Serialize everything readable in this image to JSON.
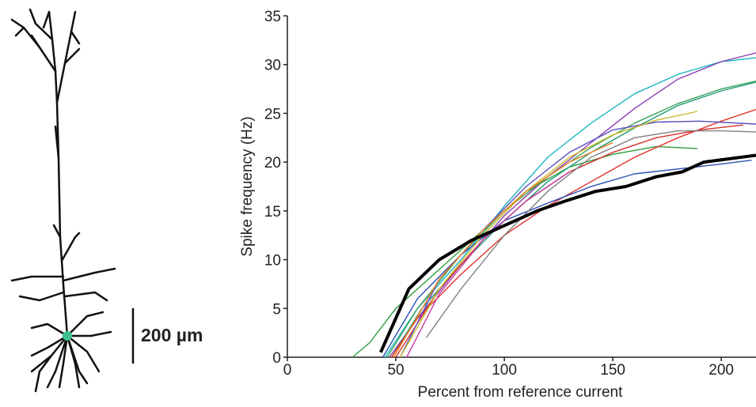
{
  "morphology": {
    "scale_bar_label": "200 µm"
  },
  "chart_data": {
    "type": "line",
    "x_label": "Percent from reference current",
    "y_label": "Spike frequency (Hz)",
    "xlim": [
      0,
      216
    ],
    "ylim": [
      0,
      35
    ],
    "xticks": [
      0,
      50,
      100,
      150,
      200
    ],
    "yticks": [
      0,
      5,
      10,
      15,
      20,
      25,
      30,
      35
    ],
    "series": [
      {
        "color": "#1fb5c0",
        "x": [
          45,
          60,
          80,
          100,
          120,
          140,
          160,
          180,
          200,
          216
        ],
        "values": [
          0,
          5,
          10,
          15.5,
          20.5,
          24,
          27,
          29,
          30.3,
          30.7
        ]
      },
      {
        "color": "#8e3fb5",
        "x": [
          47,
          60,
          80,
          100,
          120,
          140,
          160,
          180,
          200,
          216
        ],
        "values": [
          0,
          4,
          9.5,
          14.5,
          18.5,
          22,
          25.5,
          28.5,
          30.3,
          31.2
        ]
      },
      {
        "color": "#2e9b3e",
        "x": [
          30,
          38,
          50,
          70,
          90,
          110,
          130,
          150,
          170,
          189
        ],
        "values": [
          0,
          1.5,
          5,
          9,
          13,
          17,
          19.5,
          20.8,
          21.6,
          21.4
        ]
      },
      {
        "color": "#3aa55c",
        "x": [
          46,
          60,
          80,
          100,
          120,
          140,
          160,
          180,
          200,
          216
        ],
        "values": [
          0,
          5,
          10.5,
          15,
          18.5,
          21.5,
          24,
          26,
          27.5,
          28.3
        ]
      },
      {
        "color": "#1e9a7a",
        "x": [
          48,
          62,
          80,
          100,
          120,
          140,
          160,
          180,
          200,
          216
        ],
        "values": [
          0,
          5,
          9.5,
          14,
          18,
          21,
          23.5,
          25.8,
          27.3,
          28.2
        ]
      },
      {
        "color": "#e0322b",
        "x": [
          48,
          60,
          80,
          100,
          120,
          140,
          160,
          180,
          200,
          216
        ],
        "values": [
          0,
          4,
          8.5,
          12.5,
          15.5,
          18,
          20.5,
          22.5,
          24.2,
          25.4
        ]
      },
      {
        "color": "#d9302a",
        "x": [
          50,
          70,
          90,
          110,
          130,
          150,
          170,
          190,
          210
        ],
        "values": [
          0,
          7,
          12,
          16,
          19,
          21,
          22.5,
          23.3,
          23.8
        ]
      },
      {
        "color": "#2b4fb5",
        "x": [
          44,
          60,
          80,
          100,
          120,
          140,
          160,
          180,
          200,
          214
        ],
        "values": [
          0,
          6,
          10.5,
          14,
          15.8,
          17.5,
          18.8,
          19.3,
          19.8,
          20.2
        ]
      },
      {
        "color": "#5a4fbf",
        "x": [
          52,
          70,
          90,
          110,
          130,
          150,
          170,
          190,
          216
        ],
        "values": [
          0,
          8,
          13,
          17.5,
          21,
          23.3,
          24.1,
          24.2,
          23.9
        ]
      },
      {
        "color": "#808080",
        "x": [
          64,
          80,
          100,
          120,
          140,
          160,
          180,
          200,
          216
        ],
        "values": [
          2,
          7,
          12.5,
          17,
          20.5,
          22.5,
          23.2,
          23.2,
          23.1
        ]
      },
      {
        "color": "#c8b82a",
        "x": [
          52,
          70,
          90,
          110,
          130,
          150,
          170,
          189
        ],
        "values": [
          0,
          7,
          12.5,
          17,
          20.5,
          22.8,
          24.3,
          25.2
        ]
      },
      {
        "color": "#f07f22",
        "x": [
          49,
          70,
          90,
          110,
          130,
          150
        ],
        "values": [
          0,
          8,
          13,
          17,
          20,
          22
        ]
      },
      {
        "color": "#c23fa0",
        "x": [
          55,
          70,
          90,
          110,
          130
        ],
        "values": [
          0,
          6.5,
          12,
          16,
          19
        ]
      },
      {
        "color": "#000000",
        "width": 4,
        "x": [
          43,
          56,
          70,
          85,
          100,
          115,
          128,
          142,
          156,
          170,
          182,
          192,
          216
        ],
        "values": [
          0.5,
          7,
          10,
          12,
          13.5,
          15,
          16,
          17,
          17.5,
          18.5,
          19,
          20,
          20.7
        ]
      }
    ]
  }
}
